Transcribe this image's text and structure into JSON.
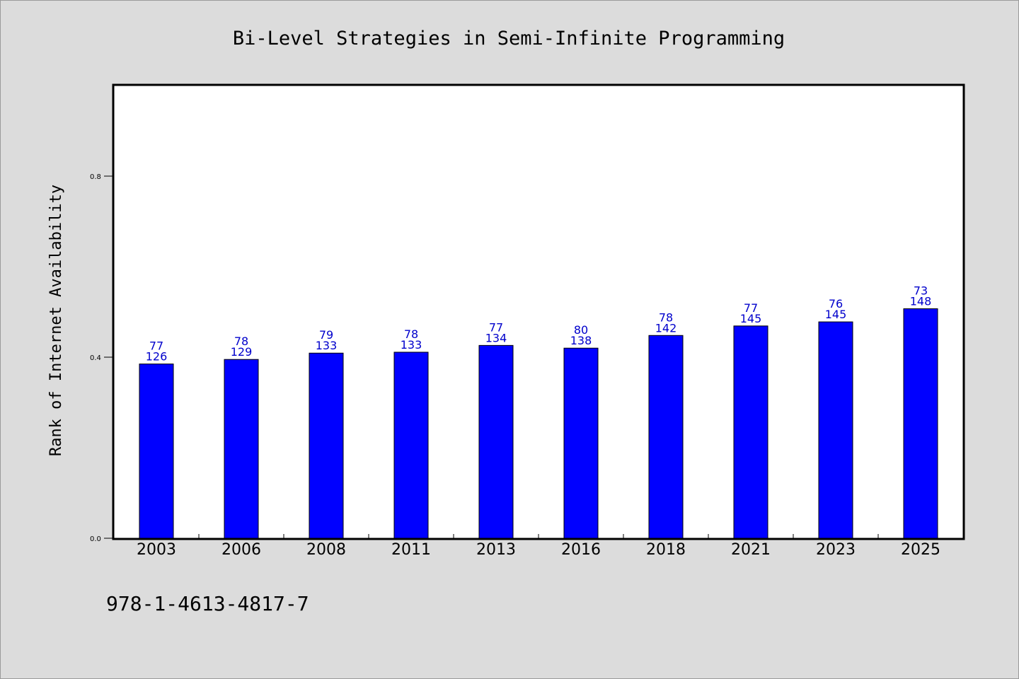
{
  "chart_data": {
    "type": "bar",
    "title": "Bi-Level Strategies in Semi-Infinite Programming",
    "xlabel": "",
    "ylabel": "Rank of Internet Availability",
    "categories": [
      "2003",
      "2006",
      "2008",
      "2011",
      "2013",
      "2016",
      "2018",
      "2021",
      "2023",
      "2025"
    ],
    "values": [
      0.385,
      0.395,
      0.409,
      0.411,
      0.426,
      0.42,
      0.448,
      0.469,
      0.478,
      0.507
    ],
    "bar_labels": [
      [
        "77",
        "126"
      ],
      [
        "78",
        "129"
      ],
      [
        "79",
        "133"
      ],
      [
        "78",
        "133"
      ],
      [
        "77",
        "134"
      ],
      [
        "80",
        "138"
      ],
      [
        "78",
        "142"
      ],
      [
        "77",
        "145"
      ],
      [
        "76",
        "145"
      ],
      [
        "73",
        "148"
      ]
    ],
    "yticks": [
      "0.0",
      "0.4",
      "0.8"
    ],
    "ytick_values": [
      0.0,
      0.4,
      0.8
    ],
    "ylim": [
      0,
      1.0
    ],
    "grid": false,
    "bar_color": "#0000ff",
    "label_color": "#0000cc",
    "background": "#dcdcdc",
    "plot_background": "#ffffff"
  },
  "footnote": "978-1-4613-4817-7"
}
